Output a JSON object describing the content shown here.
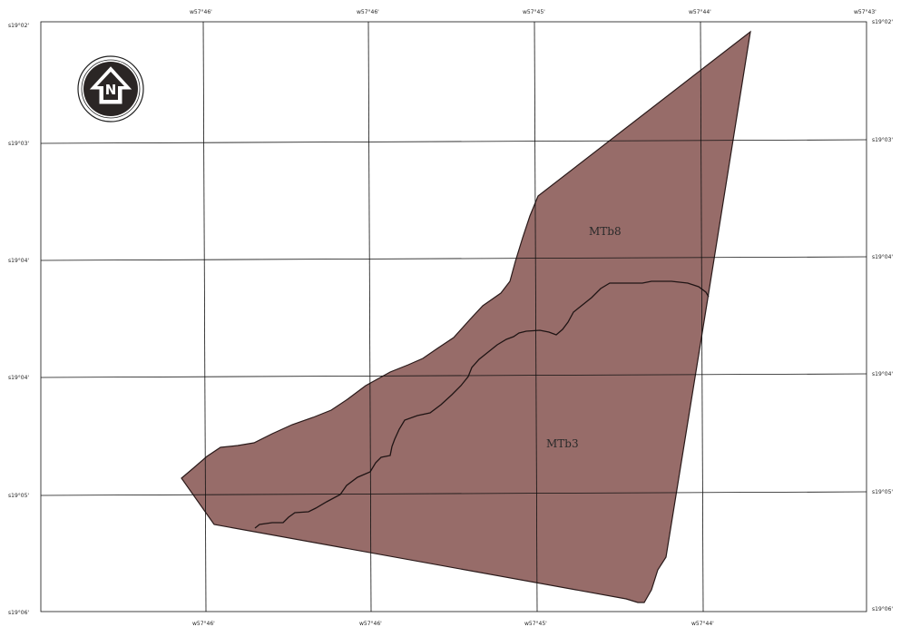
{
  "colors": {
    "unit_fill": "#976c69",
    "unit_stroke": "#2a1a1a",
    "grid": "#111111",
    "background": "#ffffff"
  },
  "north_arrow": {
    "icon": "north-arrow-icon",
    "letter": "N"
  },
  "graticule": {
    "top_labels": [
      "w57°46'",
      "w57°46'",
      "w57°45'",
      "w57°44'",
      "w57°43'"
    ],
    "bottom_labels": [
      "w57°46'",
      "w57°46'",
      "w57°45'",
      "w57°44'"
    ],
    "left_labels": [
      "s19°02'",
      "s19°03'",
      "s19°04'",
      "s19°04'",
      "s19°05'",
      "s19°06'"
    ],
    "right_labels": [
      "s19°02'",
      "s19°03'",
      "s19°04'",
      "s19°04'",
      "s19°05'",
      "s19°06'"
    ]
  },
  "units": [
    {
      "id": "MTb8",
      "label": "MTb8"
    },
    {
      "id": "MTb3",
      "label": "MTb3"
    }
  ]
}
